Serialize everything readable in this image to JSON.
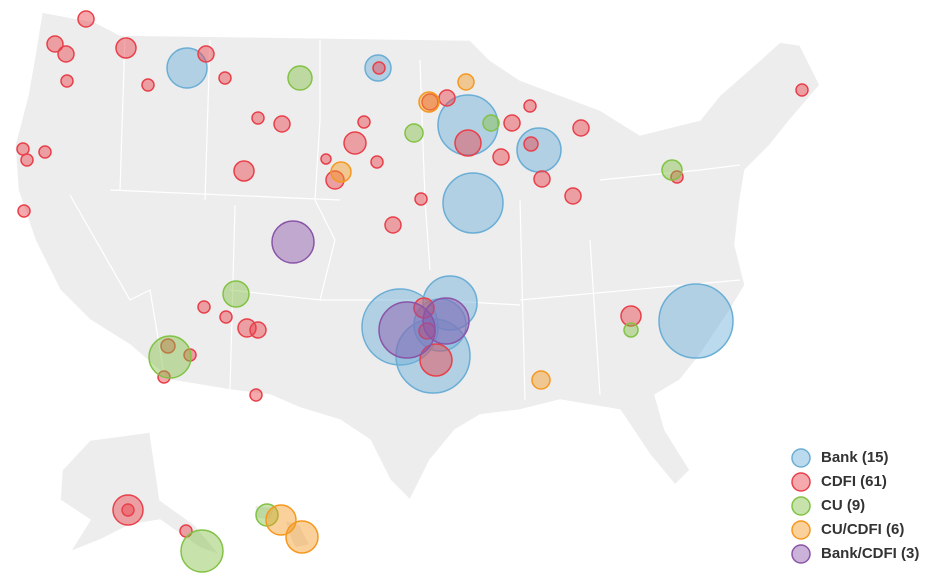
{
  "legend": [
    {
      "name": "Bank (15)",
      "color": "#6aaed6"
    },
    {
      "name": "CDFI (61)",
      "color": "#e8404a"
    },
    {
      "name": "CU (9)",
      "color": "#82c245"
    },
    {
      "name": "CU/CDFI (6)",
      "color": "#f5981f"
    },
    {
      "name": "Bank/CDFI (3)",
      "color": "#8a55a8"
    }
  ]
}
